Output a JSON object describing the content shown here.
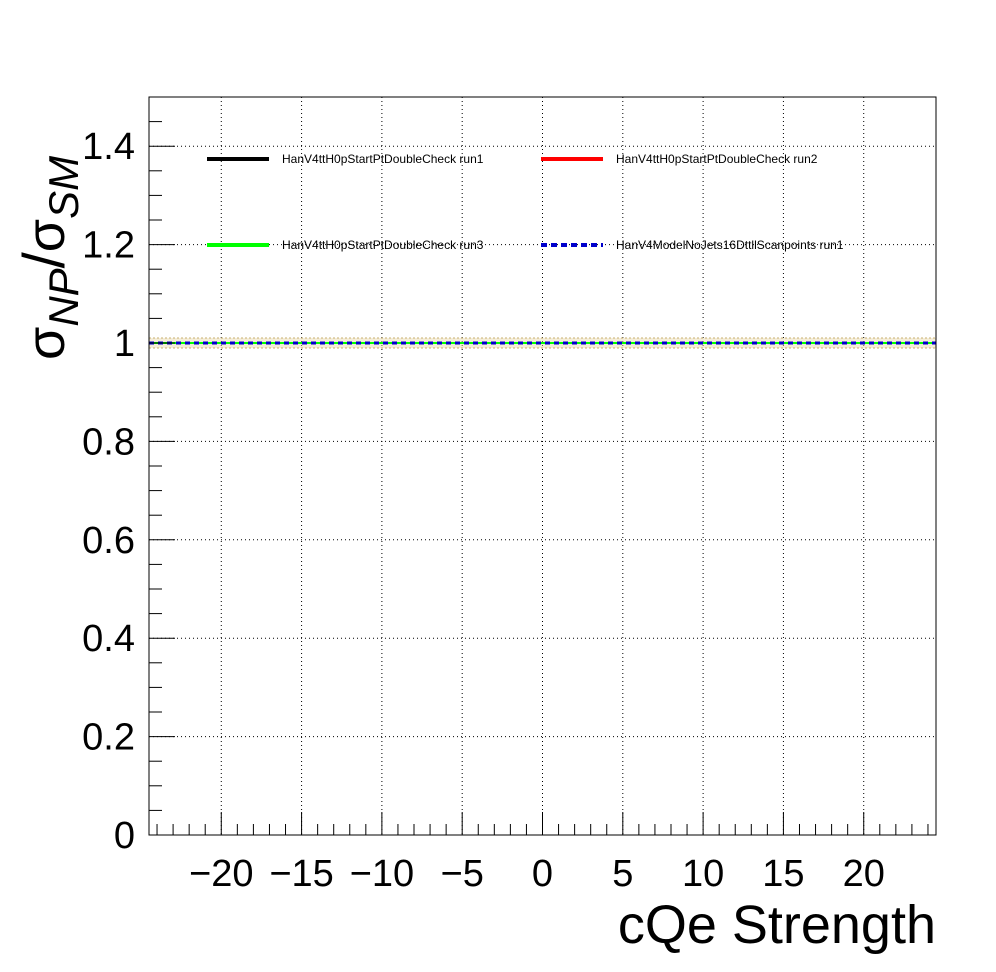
{
  "chart_data": {
    "type": "line",
    "title": "",
    "xlabel": "cQe Strength",
    "ylabel": {
      "main": "σ",
      "num_sub": "NP",
      "slash": "/",
      "den": "σ",
      "den_sub": "SM"
    },
    "xlim": [
      -24.5,
      24.5
    ],
    "ylim": [
      0,
      1.5
    ],
    "x_ticks": [
      -20,
      -15,
      -10,
      -5,
      0,
      5,
      10,
      15,
      20
    ],
    "x_tick_labels": [
      "−20",
      "−15",
      "−10",
      "−5",
      "0",
      "5",
      "10",
      "15",
      "20"
    ],
    "y_ticks": [
      0,
      0.2,
      0.4,
      0.6,
      0.8,
      1,
      1.2,
      1.4
    ],
    "y_tick_labels": [
      "0",
      "0.2",
      "0.4",
      "0.6",
      "0.8",
      "1",
      "1.2",
      "1.4"
    ],
    "grid": true,
    "legend_position": "top",
    "x": [
      -24.5,
      24.5
    ],
    "series": [
      {
        "name": "HanV4ttH0pStartPtDoubleCheck run1",
        "color": "#000000",
        "style": "solid",
        "values": [
          1,
          1
        ]
      },
      {
        "name": "HanV4ttH0pStartPtDoubleCheck run2",
        "color": "#ff0000",
        "style": "solid",
        "values": [
          1,
          1
        ]
      },
      {
        "name": "HanV4ttH0pStartPtDoubleCheck run3",
        "color": "#00ff00",
        "style": "solid",
        "values": [
          1,
          1
        ]
      },
      {
        "name": "HanV4ModelNoJets16DttllScanpoints run1",
        "color": "#0000cc",
        "style": "dashed",
        "values": [
          1,
          1
        ]
      }
    ]
  }
}
